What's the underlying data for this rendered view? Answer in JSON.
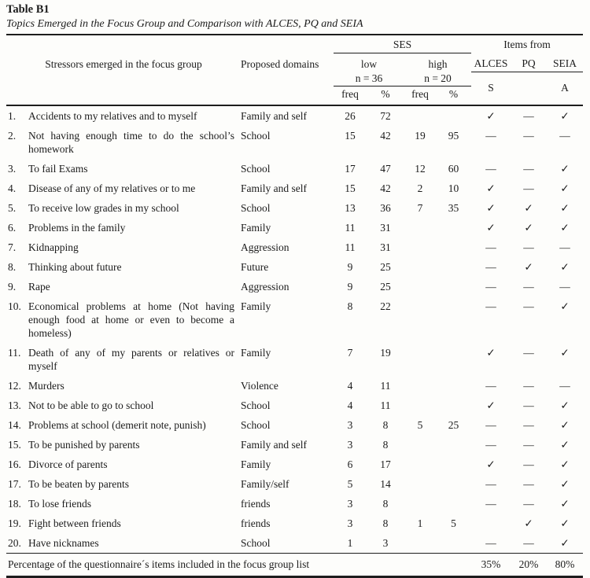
{
  "title": "Table B1",
  "subtitle": "Topics Emerged in the Focus Group and Comparison with ALCES, PQ and SEIA",
  "header": {
    "stressors": "Stressors emerged in the focus group",
    "domains": "Proposed domains",
    "ses": "SES",
    "items_from": "Items from",
    "low": "low",
    "high": "high",
    "n_low": "n = 36",
    "n_high": "n = 20",
    "freq": "freq",
    "pct": "%",
    "alces": "ALCES",
    "pq": "PQ",
    "seia": "SEIA",
    "alces_sub": "S",
    "seia_sub": "A"
  },
  "marks": {
    "check": "✓",
    "dash": "—",
    "none": ""
  },
  "rows": [
    {
      "num": "1.",
      "stressor": "Accidents to my relatives and to myself",
      "domain": "Family and self",
      "low_freq": "26",
      "low_pct": "72",
      "high_freq": "",
      "high_pct": "",
      "alces": "✓",
      "pq": "—",
      "seia": "✓"
    },
    {
      "num": "2.",
      "stressor": "Not having enough time to do the school’s homework",
      "domain": "School",
      "low_freq": "15",
      "low_pct": "42",
      "high_freq": "19",
      "high_pct": "95",
      "alces": "—",
      "pq": "—",
      "seia": "—"
    },
    {
      "num": "3.",
      "stressor": "To fail Exams",
      "domain": "School",
      "low_freq": "17",
      "low_pct": "47",
      "high_freq": "12",
      "high_pct": "60",
      "alces": "—",
      "pq": "—",
      "seia": "✓"
    },
    {
      "num": "4.",
      "stressor": "Disease of any of my relatives or to me",
      "domain": "Family and self",
      "low_freq": "15",
      "low_pct": "42",
      "high_freq": "2",
      "high_pct": "10",
      "alces": "✓",
      "pq": "—",
      "seia": "✓"
    },
    {
      "num": "5.",
      "stressor": "To receive low grades in my school",
      "domain": "School",
      "low_freq": "13",
      "low_pct": "36",
      "high_freq": "7",
      "high_pct": "35",
      "alces": "✓",
      "pq": "✓",
      "seia": "✓"
    },
    {
      "num": "6.",
      "stressor": "Problems in the family",
      "domain": "Family",
      "low_freq": "11",
      "low_pct": "31",
      "high_freq": "",
      "high_pct": "",
      "alces": "✓",
      "pq": "✓",
      "seia": "✓"
    },
    {
      "num": "7.",
      "stressor": "Kidnapping",
      "domain": "Aggression",
      "low_freq": "11",
      "low_pct": "31",
      "high_freq": "",
      "high_pct": "",
      "alces": "—",
      "pq": "—",
      "seia": "—"
    },
    {
      "num": "8.",
      "stressor": "Thinking about future",
      "domain": "Future",
      "low_freq": "9",
      "low_pct": "25",
      "high_freq": "",
      "high_pct": "",
      "alces": "—",
      "pq": "✓",
      "seia": "✓"
    },
    {
      "num": "9.",
      "stressor": "Rape",
      "domain": "Aggression",
      "low_freq": "9",
      "low_pct": "25",
      "high_freq": "",
      "high_pct": "",
      "alces": "—",
      "pq": "—",
      "seia": "—"
    },
    {
      "num": "10.",
      "stressor": "Economical problems at home (Not having enough food at home or even to become a homeless)",
      "domain": "Family",
      "low_freq": "8",
      "low_pct": "22",
      "high_freq": "",
      "high_pct": "",
      "alces": "—",
      "pq": "—",
      "seia": "✓"
    },
    {
      "num": "11.",
      "stressor": "Death of any of my parents or relatives or myself",
      "domain": "Family",
      "low_freq": "7",
      "low_pct": "19",
      "high_freq": "",
      "high_pct": "",
      "alces": "✓",
      "pq": "—",
      "seia": "✓"
    },
    {
      "num": "12.",
      "stressor": "Murders",
      "domain": "Violence",
      "low_freq": "4",
      "low_pct": "11",
      "high_freq": "",
      "high_pct": "",
      "alces": "—",
      "pq": "—",
      "seia": "—"
    },
    {
      "num": "13.",
      "stressor": "Not to be able to go to school",
      "domain": "School",
      "low_freq": "4",
      "low_pct": "11",
      "high_freq": "",
      "high_pct": "",
      "alces": "✓",
      "pq": "—",
      "seia": "✓"
    },
    {
      "num": "14.",
      "stressor": "Problems at school (demerit note, punish)",
      "domain": "School",
      "low_freq": "3",
      "low_pct": "8",
      "high_freq": "5",
      "high_pct": "25",
      "alces": "—",
      "pq": "—",
      "seia": "✓"
    },
    {
      "num": "15.",
      "stressor": "To be punished by parents",
      "domain": "Family and self",
      "low_freq": "3",
      "low_pct": "8",
      "high_freq": "",
      "high_pct": "",
      "alces": "—",
      "pq": "—",
      "seia": "✓"
    },
    {
      "num": "16.",
      "stressor": "Divorce of parents",
      "domain": "Family",
      "low_freq": "6",
      "low_pct": "17",
      "high_freq": "",
      "high_pct": "",
      "alces": "✓",
      "pq": "—",
      "seia": "✓"
    },
    {
      "num": "17.",
      "stressor": "To be beaten by parents",
      "domain": "Family/self",
      "low_freq": "5",
      "low_pct": "14",
      "high_freq": "",
      "high_pct": "",
      "alces": "—",
      "pq": "—",
      "seia": "✓"
    },
    {
      "num": "18.",
      "stressor": "To lose friends",
      "domain": "friends",
      "low_freq": "3",
      "low_pct": "8",
      "high_freq": "",
      "high_pct": "",
      "alces": "—",
      "pq": "—",
      "seia": "✓"
    },
    {
      "num": "19.",
      "stressor": "Fight between friends",
      "domain": "friends",
      "low_freq": "3",
      "low_pct": "8",
      "high_freq": "1",
      "high_pct": "5",
      "alces": "",
      "pq": "✓",
      "seia": "✓"
    },
    {
      "num": "20.",
      "stressor": "Have nicknames",
      "domain": "School",
      "low_freq": "1",
      "low_pct": "3",
      "high_freq": "",
      "high_pct": "",
      "alces": "—",
      "pq": "—",
      "seia": "✓"
    }
  ],
  "footer": {
    "label": "Percentage of the questionnaire´s items included in the focus group list",
    "alces": "35%",
    "pq": "20%",
    "seia": "80%"
  }
}
